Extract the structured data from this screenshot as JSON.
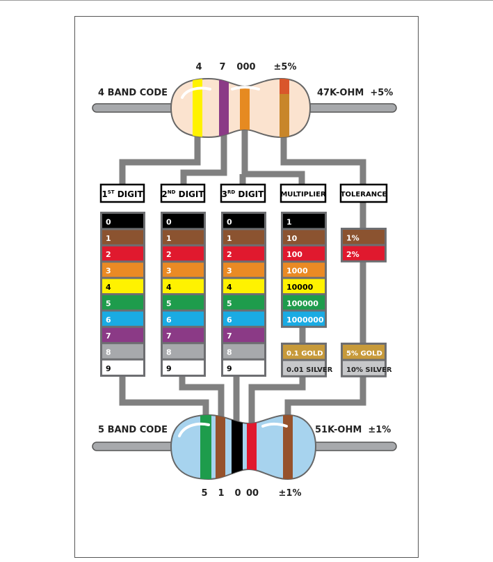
{
  "top_resistor": {
    "code_label": "4 BAND CODE",
    "value_label": "47K-OHM  +5%",
    "digit_labels": [
      "4",
      "7",
      "000",
      "±5%"
    ],
    "bands": [
      {
        "name": "1st-digit",
        "color": "#fff200"
      },
      {
        "name": "2nd-digit",
        "color": "#8b3a86"
      },
      {
        "name": "multiplier",
        "color": "#e68a21"
      },
      {
        "name": "tolerance",
        "color": "#c8862a"
      }
    ]
  },
  "bottom_resistor": {
    "code_label": "5 BAND CODE",
    "value_label": "51K-OHM  ±1%",
    "digit_labels": [
      "5",
      "1",
      "0",
      "00",
      "±1%"
    ],
    "bands": [
      {
        "name": "1st-digit",
        "color": "#1e9c4c"
      },
      {
        "name": "2nd-digit",
        "color": "#96522c"
      },
      {
        "name": "3rd-digit",
        "color": "#000000"
      },
      {
        "name": "multiplier",
        "color": "#e0192e"
      },
      {
        "name": "tolerance",
        "color": "#96522c"
      }
    ]
  },
  "headers": {
    "first_digit": {
      "base": "1",
      "sup": "ST",
      "rest": " DIGIT"
    },
    "second_digit": {
      "base": "2",
      "sup": "ND",
      "rest": " DIGIT"
    },
    "third_digit": {
      "base": "3",
      "sup": "RD",
      "rest": " DIGIT"
    },
    "multiplier": "MULTIPLIER",
    "tolerance": "TOLERANCE"
  },
  "digit_colors": [
    {
      "label": "0",
      "color": "#000000",
      "text_color": "#ffffff"
    },
    {
      "label": "1",
      "color": "#8b5330",
      "text_color": "#ffffff"
    },
    {
      "label": "2",
      "color": "#e0192e",
      "text_color": "#ffffff"
    },
    {
      "label": "3",
      "color": "#ea8a24",
      "text_color": "#ffffff"
    },
    {
      "label": "4",
      "color": "#fff200",
      "text_color": "#000000"
    },
    {
      "label": "5",
      "color": "#1e9c4c",
      "text_color": "#ffffff"
    },
    {
      "label": "6",
      "color": "#1aabe3",
      "text_color": "#ffffff"
    },
    {
      "label": "7",
      "color": "#8b3a86",
      "text_color": "#ffffff"
    },
    {
      "label": "8",
      "color": "#a7a9ac",
      "text_color": "#ffffff"
    },
    {
      "label": "9",
      "color": "#ffffff",
      "text_color": "#000000"
    }
  ],
  "multiplier_colors": [
    {
      "label": "1",
      "color": "#000000",
      "text_color": "#ffffff"
    },
    {
      "label": "10",
      "color": "#8b5330",
      "text_color": "#ffffff"
    },
    {
      "label": "100",
      "color": "#e0192e",
      "text_color": "#ffffff"
    },
    {
      "label": "1000",
      "color": "#ea8a24",
      "text_color": "#ffffff"
    },
    {
      "label": "10000",
      "color": "#fff200",
      "text_color": "#000000"
    },
    {
      "label": "100000",
      "color": "#1e9c4c",
      "text_color": "#ffffff"
    },
    {
      "label": "1000000",
      "color": "#1aabe3",
      "text_color": "#ffffff"
    }
  ],
  "multiplier_extra": [
    {
      "label": "0.1 GOLD",
      "color": "#c79a3a",
      "text_color": "#ffffff"
    },
    {
      "label": "0.01 SILVER",
      "color": "#c7c8ca",
      "text_color": "#222222"
    }
  ],
  "tolerance_colors": [
    {
      "label": "1%",
      "color": "#8b5330",
      "text_color": "#ffffff"
    },
    {
      "label": "2%",
      "color": "#e0192e",
      "text_color": "#ffffff"
    }
  ],
  "tolerance_extra": [
    {
      "label": "5% GOLD",
      "color": "#c79a3a",
      "text_color": "#ffffff"
    },
    {
      "label": "10% SILVER",
      "color": "#c7c8ca",
      "text_color": "#222222"
    }
  ],
  "colors": {
    "wire": "#808080",
    "frame_gray": "#6d6e71",
    "top_body": "#fbe3cf",
    "bottom_body": "#a7d3ee"
  }
}
